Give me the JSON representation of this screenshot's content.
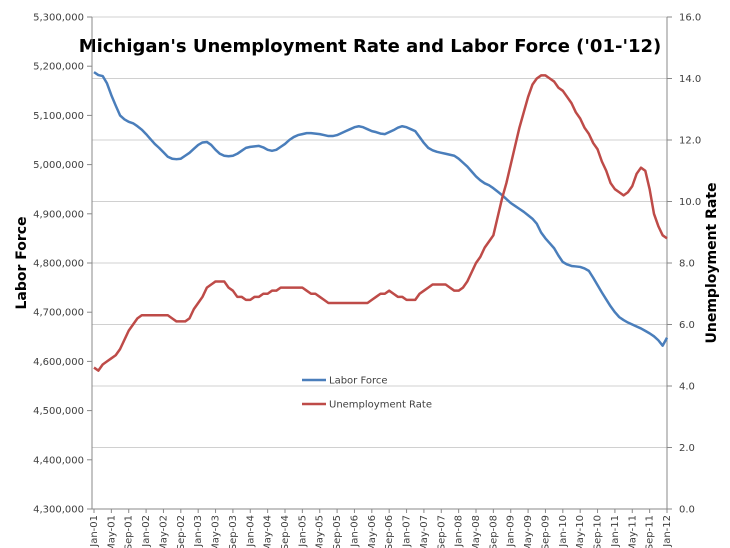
{
  "chart_data": {
    "type": "line",
    "title": "Michigan's Unemployment Rate and Labor Force ('01-'12)",
    "ylabel": "Labor Force",
    "y2label": "Unemployment Rate",
    "categories": [
      "Jan-01",
      null,
      null,
      null,
      "May-01",
      null,
      null,
      null,
      "Sep-01",
      null,
      null,
      null,
      "Jan-02",
      null,
      null,
      null,
      "May-02",
      null,
      null,
      null,
      "Sep-02",
      null,
      null,
      null,
      "Jan-03",
      null,
      null,
      null,
      "May-03",
      null,
      null,
      null,
      "Sep-03",
      null,
      null,
      null,
      "Jan-04",
      null,
      null,
      null,
      "May-04",
      null,
      null,
      null,
      "Sep-04",
      null,
      null,
      null,
      "Jan-05",
      null,
      null,
      null,
      "May-05",
      null,
      null,
      null,
      "Sep-05",
      null,
      null,
      null,
      "Jan-06",
      null,
      null,
      null,
      "May-06",
      null,
      null,
      null,
      "Sep-06",
      null,
      null,
      null,
      "Jan-07",
      null,
      null,
      null,
      "May-07",
      null,
      null,
      null,
      "Sep-07",
      null,
      null,
      null,
      "Jan-08",
      null,
      null,
      null,
      "May-08",
      null,
      null,
      null,
      "Sep-08",
      null,
      null,
      null,
      "Jan-09",
      null,
      null,
      null,
      "May-09",
      null,
      null,
      null,
      "Sep-09",
      null,
      null,
      null,
      "Jan-10",
      null,
      null,
      null,
      "May-10",
      null,
      null,
      null,
      "Sep-10",
      null,
      null,
      null,
      "Jan-11",
      null,
      null,
      null,
      "May-11",
      null,
      null,
      null,
      "Sep-11",
      null,
      null,
      null,
      "Jan-12"
    ],
    "series": [
      {
        "name": "Labor Force",
        "color": "#4a7ebb",
        "axis": "y",
        "values": [
          5188000,
          5182000,
          5180000,
          5165000,
          5141000,
          5120000,
          5100000,
          5092000,
          5087000,
          5084000,
          5078000,
          5071000,
          5062000,
          5052000,
          5042000,
          5034000,
          5025000,
          5016000,
          5012000,
          5011000,
          5012000,
          5018000,
          5024000,
          5032000,
          5040000,
          5045000,
          5046000,
          5040000,
          5030000,
          5022000,
          5018000,
          5017000,
          5018000,
          5022000,
          5028000,
          5034000,
          5036000,
          5037000,
          5038000,
          5035000,
          5030000,
          5028000,
          5030000,
          5036000,
          5042000,
          5050000,
          5056000,
          5060000,
          5062000,
          5064000,
          5064000,
          5063000,
          5062000,
          5060000,
          5058000,
          5058000,
          5060000,
          5064000,
          5068000,
          5072000,
          5076000,
          5078000,
          5076000,
          5072000,
          5068000,
          5066000,
          5063000,
          5062000,
          5066000,
          5070000,
          5075000,
          5078000,
          5076000,
          5072000,
          5068000,
          5056000,
          5044000,
          5034000,
          5029000,
          5026000,
          5024000,
          5022000,
          5020000,
          5018000,
          5012000,
          5004000,
          4996000,
          4986000,
          4976000,
          4968000,
          4962000,
          4958000,
          4952000,
          4945000,
          4938000,
          4930000,
          4922000,
          4916000,
          4910000,
          4904000,
          4897000,
          4890000,
          4880000,
          4862000,
          4850000,
          4840000,
          4830000,
          4815000,
          4802000,
          4797000,
          4794000,
          4793000,
          4792000,
          4789000,
          4784000,
          4770000,
          4755000,
          4740000,
          4726000,
          4712000,
          4700000,
          4690000,
          4684000,
          4679000,
          4675000,
          4671000,
          4667000,
          4662000,
          4657000,
          4651000,
          4643000,
          4632000,
          4648000
        ]
      },
      {
        "name": "Unemployment Rate",
        "color": "#be4b48",
        "axis": "y2",
        "values": [
          4.6,
          4.5,
          4.7,
          4.8,
          4.9,
          5.0,
          5.2,
          5.5,
          5.8,
          6.0,
          6.2,
          6.3,
          6.3,
          6.3,
          6.3,
          6.3,
          6.3,
          6.3,
          6.2,
          6.1,
          6.1,
          6.1,
          6.2,
          6.5,
          6.7,
          6.9,
          7.2,
          7.3,
          7.4,
          7.4,
          7.4,
          7.2,
          7.1,
          6.9,
          6.9,
          6.8,
          6.8,
          6.9,
          6.9,
          7.0,
          7.0,
          7.1,
          7.1,
          7.2,
          7.2,
          7.2,
          7.2,
          7.2,
          7.2,
          7.1,
          7.0,
          7.0,
          6.9,
          6.8,
          6.7,
          6.7,
          6.7,
          6.7,
          6.7,
          6.7,
          6.7,
          6.7,
          6.7,
          6.7,
          6.8,
          6.9,
          7.0,
          7.0,
          7.1,
          7.0,
          6.9,
          6.9,
          6.8,
          6.8,
          6.8,
          7.0,
          7.1,
          7.2,
          7.3,
          7.3,
          7.3,
          7.3,
          7.2,
          7.1,
          7.1,
          7.2,
          7.4,
          7.7,
          8.0,
          8.2,
          8.5,
          8.7,
          8.9,
          9.5,
          10.1,
          10.6,
          11.2,
          11.8,
          12.4,
          12.9,
          13.4,
          13.8,
          14.0,
          14.1,
          14.1,
          14.0,
          13.9,
          13.7,
          13.6,
          13.4,
          13.2,
          12.9,
          12.7,
          12.4,
          12.2,
          11.9,
          11.7,
          11.3,
          11.0,
          10.6,
          10.4,
          10.3,
          10.2,
          10.3,
          10.5,
          10.9,
          11.1,
          11.0,
          10.4,
          9.6,
          9.2,
          8.9,
          8.8
        ]
      }
    ],
    "ylim": [
      4300000,
      5300000
    ],
    "yticks": [
      {
        "value": 4300000,
        "label": "4,300,000"
      },
      {
        "value": 4400000,
        "label": "4,400,000"
      },
      {
        "value": 4500000,
        "label": "4,500,000"
      },
      {
        "value": 4600000,
        "label": "4,600,000"
      },
      {
        "value": 4700000,
        "label": "4,700,000"
      },
      {
        "value": 4800000,
        "label": "4,800,000"
      },
      {
        "value": 4900000,
        "label": "4,900,000"
      },
      {
        "value": 5000000,
        "label": "5,000,000"
      },
      {
        "value": 5100000,
        "label": "5,100,000"
      },
      {
        "value": 5200000,
        "label": "5,200,000"
      },
      {
        "value": 5300000,
        "label": "5,300,000"
      }
    ],
    "y2lim": [
      0,
      16
    ],
    "y2ticks": [
      {
        "value": 0,
        "label": "0.0"
      },
      {
        "value": 2,
        "label": "2.0"
      },
      {
        "value": 4,
        "label": "4.0"
      },
      {
        "value": 6,
        "label": "6.0"
      },
      {
        "value": 8,
        "label": "8.0"
      },
      {
        "value": 10,
        "label": "10.0"
      },
      {
        "value": 12,
        "label": "12.0"
      },
      {
        "value": 14,
        "label": "14.0"
      },
      {
        "value": 16,
        "label": "16.0"
      }
    ],
    "grid": true
  }
}
